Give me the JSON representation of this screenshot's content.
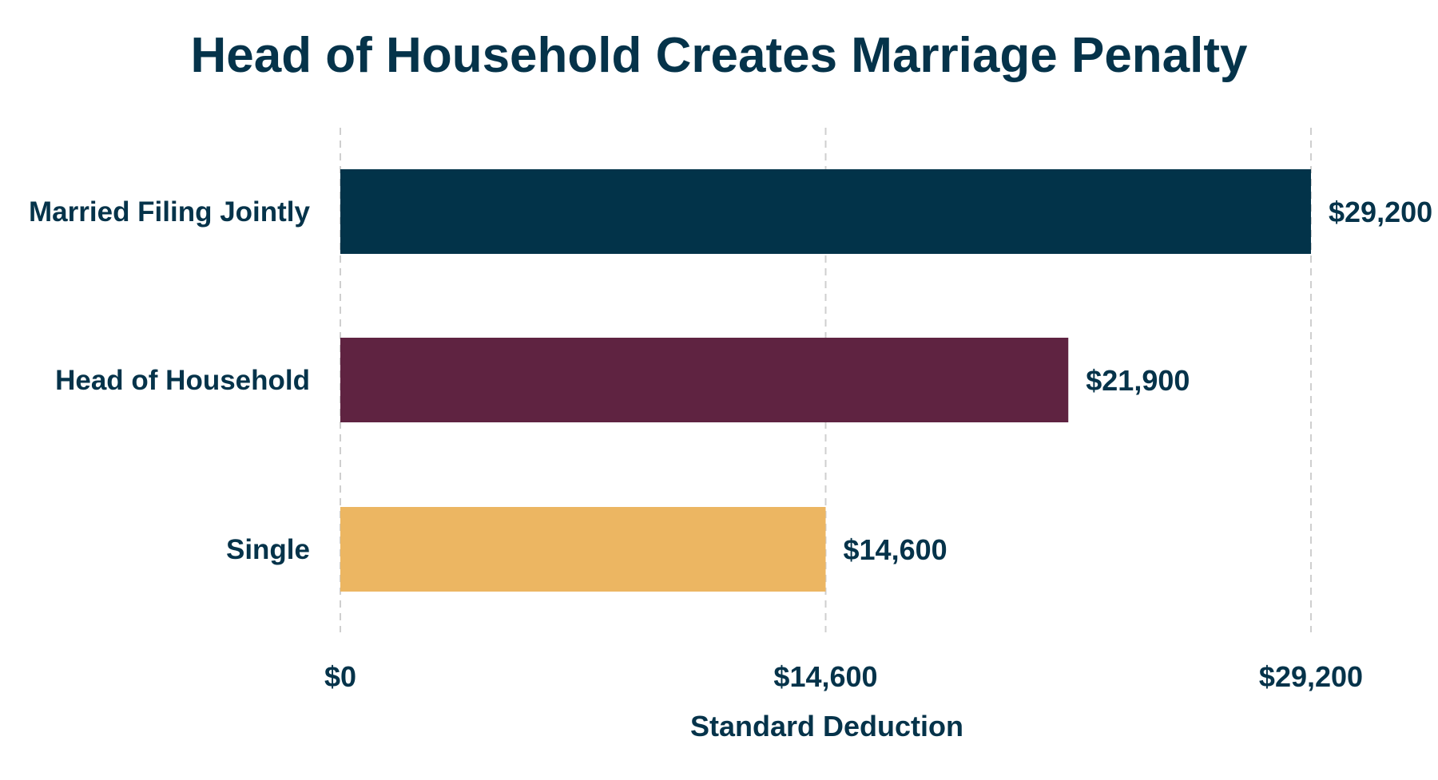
{
  "chart_data": {
    "type": "bar",
    "orientation": "horizontal",
    "title": "Head of Household Creates Marriage Penalty",
    "xlabel": "Standard Deduction",
    "ylabel": "",
    "categories": [
      "Married Filing Jointly",
      "Head of Household",
      "Single"
    ],
    "values": [
      29200,
      21900,
      14600
    ],
    "value_labels": [
      "$29,200",
      "$21,900",
      "$14,600"
    ],
    "bar_colors": [
      "#023349",
      "#5f2341",
      "#ecb662"
    ],
    "xlim": [
      0,
      29200
    ],
    "x_ticks": [
      0,
      14600,
      29200
    ],
    "x_tick_labels": [
      "$0",
      "$14,600",
      "$29,200"
    ],
    "grid": "vertical dashed",
    "legend": "none",
    "text_color": "#05334a",
    "grid_color": "#cfcfcf"
  }
}
